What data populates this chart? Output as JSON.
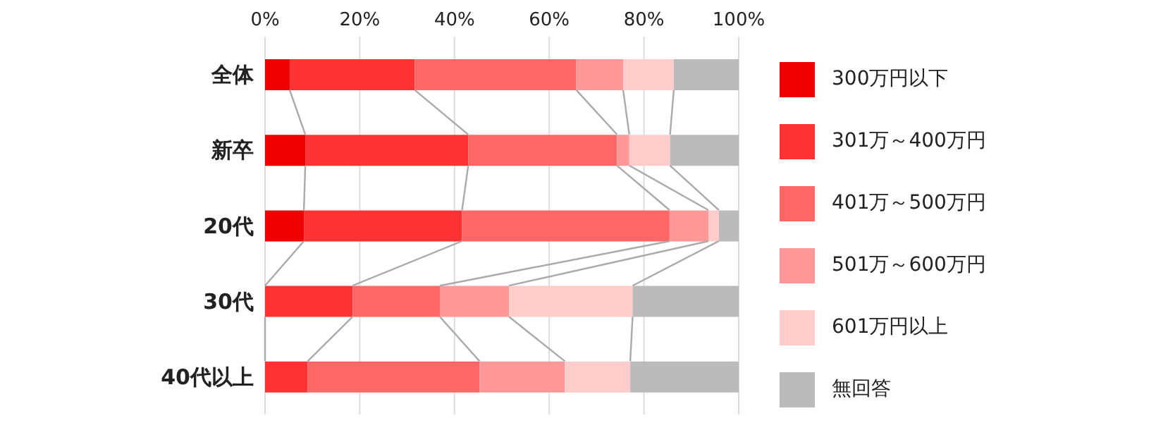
{
  "chart_data": {
    "type": "bar",
    "orientation": "horizontal",
    "stacked": true,
    "categories": [
      "全体",
      "新卒",
      "20代",
      "30代",
      "40代以上"
    ],
    "series": [
      {
        "name": "300万円以下",
        "color": "#ee0000",
        "values": [
          5.2,
          8.5,
          8.2,
          0,
          0
        ]
      },
      {
        "name": "301万～400万円",
        "color": "#ff3333",
        "values": [
          26.4,
          34.4,
          33.4,
          18.5,
          9.0
        ]
      },
      {
        "name": "401万～500万円",
        "color": "#ff6666",
        "values": [
          34.1,
          31.4,
          43.8,
          18.4,
          36.3
        ]
      },
      {
        "name": "501万～600万円",
        "color": "#ff9999",
        "values": [
          9.9,
          2.6,
          8.2,
          14.6,
          18.0
        ]
      },
      {
        "name": "601万円以上",
        "color": "#ffcccc",
        "values": [
          10.7,
          8.6,
          2.2,
          26.1,
          13.8
        ]
      },
      {
        "name": "無回答",
        "color": "#bbbbbb",
        "values": [
          13.7,
          14.5,
          4.2,
          22.4,
          22.9
        ]
      }
    ],
    "xlim": [
      0,
      100
    ],
    "xticks": [
      {
        "value": 0,
        "label": "0%"
      },
      {
        "value": 20,
        "label": "20%"
      },
      {
        "value": 40,
        "label": "40%"
      },
      {
        "value": 60,
        "label": "60%"
      },
      {
        "value": 80,
        "label": "80%"
      },
      {
        "value": 100,
        "label": "100%"
      }
    ],
    "grid": "x",
    "legend": "right"
  }
}
